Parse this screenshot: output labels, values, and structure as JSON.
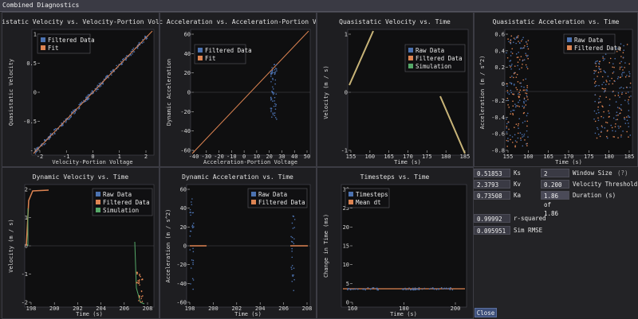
{
  "window": {
    "title": "Combined Diagnostics"
  },
  "colors": {
    "raw": "#4c72b0",
    "filtered": "#dd8452",
    "fit": "#dd8452",
    "sim": "#55a868"
  },
  "plots": {
    "qs_vel_vs_volt": {
      "title": "Quasistatic Velocity vs. Velocity-Portion Voltage",
      "xlabel": "Velocity-Portion Voltage",
      "ylabel": "Quasistatic Velocity",
      "xticks": [
        "-2",
        "-1",
        "0",
        "1",
        "2"
      ],
      "yticks": [
        "1",
        "0.5",
        "0",
        "-0.5",
        "-1"
      ],
      "legend": [
        "Filtered Data",
        "Fit"
      ]
    },
    "dyn_acc_vs_volt": {
      "title": "Dynamic Acceleration vs. Acceleration-Portion Voltage",
      "xlabel": "Acceleration-Portion Voltage",
      "ylabel": "Dynamic Acceleration",
      "xticks": [
        "-40",
        "-30",
        "-20",
        "-10",
        "0",
        "10",
        "20",
        "30",
        "40",
        "50"
      ],
      "yticks": [
        "60",
        "40",
        "20",
        "0",
        "-20",
        "-40",
        "-60"
      ],
      "legend": [
        "Filtered Data",
        "Fit"
      ]
    },
    "qs_vel_vs_time": {
      "title": "Quasistatic Velocity vs. Time",
      "xlabel": "Time (s)",
      "ylabel": "Velocity (m / s)",
      "xticks": [
        "155",
        "160",
        "165",
        "170",
        "175",
        "180",
        "185"
      ],
      "yticks": [
        "1",
        "0",
        "-1"
      ],
      "legend": [
        "Raw Data",
        "Filtered Data",
        "Simulation"
      ]
    },
    "qs_acc_vs_time": {
      "title": "Quasistatic Acceleration vs. Time",
      "xlabel": "Time (s)",
      "ylabel": "Acceleration (m / s^2)",
      "xticks": [
        "155",
        "160",
        "165",
        "170",
        "175",
        "180",
        "185"
      ],
      "yticks": [
        "0.6",
        "0.4",
        "0.2",
        "0",
        "-0.2",
        "-0.4",
        "-0.6",
        "-0.8"
      ],
      "legend": [
        "Raw Data",
        "Filtered Data"
      ]
    },
    "dyn_vel_vs_time": {
      "title": "Dynamic Velocity vs. Time",
      "xlabel": "Time (s)",
      "ylabel": "Velocity (m / s)",
      "xticks": [
        "198",
        "200",
        "202",
        "204",
        "206",
        "208"
      ],
      "yticks": [
        "2",
        "1",
        "0",
        "-1",
        "-2"
      ],
      "legend": [
        "Raw Data",
        "Filtered Data",
        "Simulation"
      ]
    },
    "dyn_acc_vs_time": {
      "title": "Dynamic Acceleration vs. Time",
      "xlabel": "Time (s)",
      "ylabel": "Acceleration (m / s^2)",
      "xticks": [
        "198",
        "200",
        "202",
        "204",
        "206",
        "208"
      ],
      "yticks": [
        "60",
        "40",
        "20",
        "0",
        "-20",
        "-40",
        "-60"
      ],
      "legend": [
        "Raw Data",
        "Filtered Data"
      ]
    },
    "timesteps": {
      "title": "Timesteps vs. Time",
      "xlabel": "Time (s)",
      "ylabel": "Change in Time (ms)",
      "xticks": [
        "160",
        "180",
        "200"
      ],
      "yticks": [
        "30",
        "25",
        "20",
        "15",
        "10",
        "5",
        "0"
      ],
      "legend": [
        "Timesteps",
        "Mean dt"
      ]
    }
  },
  "params": {
    "ks": {
      "value": "0.51853",
      "label": "Ks"
    },
    "kv": {
      "value": "2.3793",
      "label": "Kv"
    },
    "ka": {
      "value": "0.73508",
      "label": "Ka"
    },
    "window_size": {
      "value": "2",
      "label": "Window Size",
      "help": "(?)"
    },
    "velocity_threshold": {
      "value": "0.200",
      "label": "Velocity Threshold"
    },
    "duration": {
      "value": "1.86 of 1.86",
      "label": "Duration (s)"
    },
    "r_squared": {
      "value": "0.99992",
      "label": "r-squared"
    },
    "sim_rmse": {
      "value": "0.095951",
      "label": "Sim RMSE"
    }
  },
  "close_label": "Close"
}
